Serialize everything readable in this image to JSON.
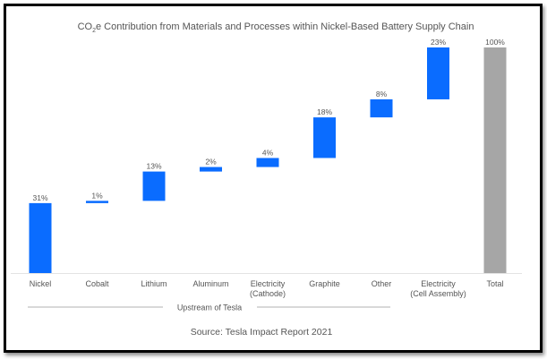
{
  "chart_data": {
    "type": "bar",
    "subtype": "waterfall",
    "title": "CO₂e Contribution from Materials and Processes within Nickel-Based Battery Supply Chain",
    "categories": [
      "Nickel",
      "Cobalt",
      "Lithium",
      "Aluminum",
      "Electricity\n(Cathode)",
      "Graphite",
      "Other",
      "Electricity\n(Cell Assembly)",
      "Total"
    ],
    "values": [
      31,
      1,
      13,
      2,
      4,
      18,
      8,
      23,
      100
    ],
    "data_labels": [
      "31%",
      "1%",
      "13%",
      "2%",
      "4%",
      "18%",
      "8%",
      "23%",
      "100%"
    ],
    "is_total": [
      false,
      false,
      false,
      false,
      false,
      false,
      false,
      false,
      true
    ],
    "ylim": [
      0,
      100
    ],
    "xlabel": "",
    "ylabel": "",
    "grid": false,
    "group_label": "Upstream of Tesla",
    "source": "Source: Tesla Impact Report 2021",
    "colors": {
      "increment": "#0a6cff",
      "total": "#a6a6a6",
      "axis": "#e3e3e3"
    }
  }
}
